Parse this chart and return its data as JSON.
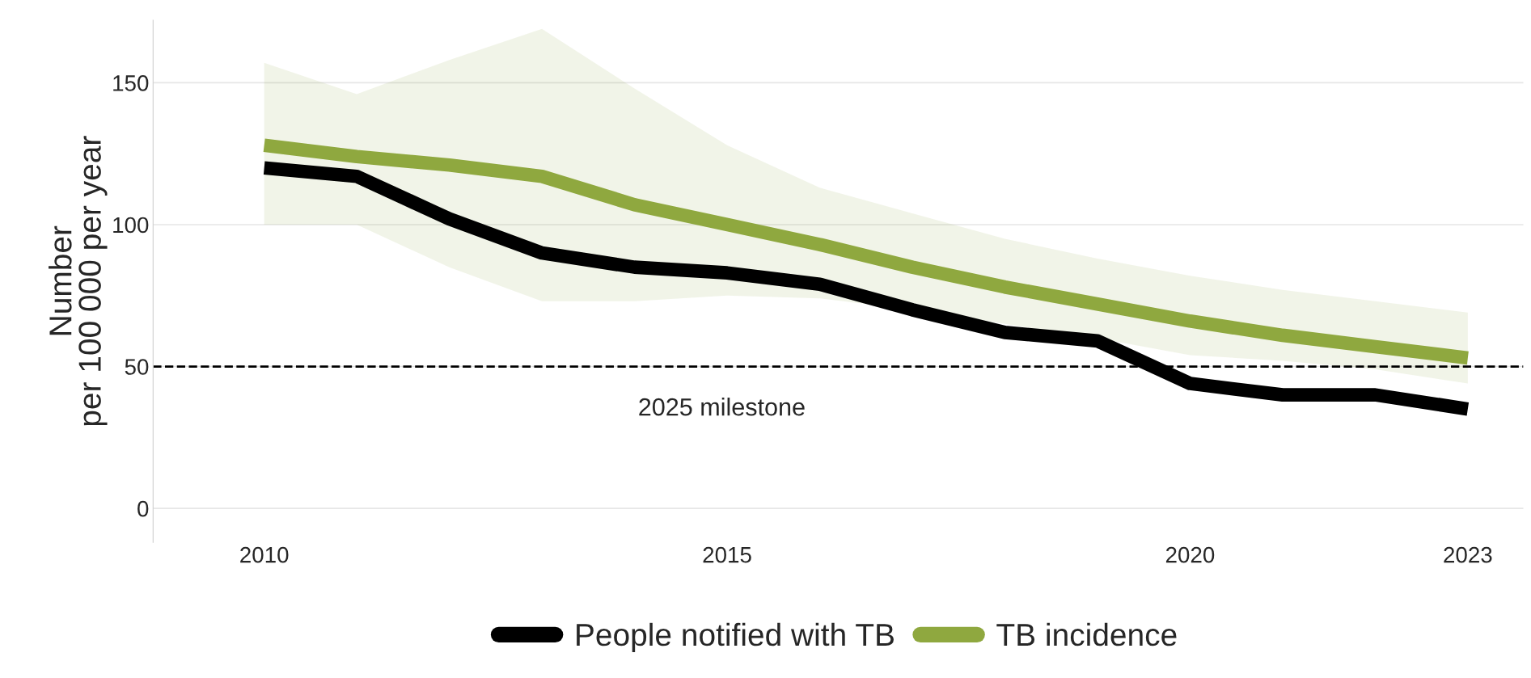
{
  "chart_data": {
    "type": "line",
    "ylabel": "Number\nper 100 000 per year",
    "x": [
      2010,
      2011,
      2012,
      2013,
      2014,
      2015,
      2016,
      2017,
      2018,
      2019,
      2020,
      2021,
      2022,
      2023
    ],
    "series": [
      {
        "name": "People notified with TB",
        "color": "#000000",
        "values": [
          120,
          117,
          102,
          90,
          85,
          83,
          79,
          70,
          62,
          59,
          44,
          40,
          40,
          35
        ]
      },
      {
        "name": "TB incidence",
        "color": "#8fa83f",
        "values": [
          128,
          124,
          121,
          117,
          107,
          100,
          93,
          85,
          78,
          72,
          66,
          61,
          57,
          53
        ],
        "lower": [
          100,
          100,
          85,
          73,
          73,
          75,
          74,
          70,
          65,
          60,
          54,
          52,
          49,
          44
        ],
        "upper": [
          157,
          146,
          158,
          169,
          148,
          128,
          113,
          104,
          95,
          88,
          82,
          77,
          73,
          69
        ]
      }
    ],
    "xlim": [
      2008.8,
      2023.6
    ],
    "ylim": [
      -12,
      172
    ],
    "xticks": [
      2010,
      2015,
      2020,
      2023
    ],
    "yticks": [
      0,
      50,
      100,
      150
    ],
    "ref_lines": [
      {
        "axis": "y",
        "value": 50,
        "line_style": "dashed",
        "color": "#000000",
        "label": "2025 milestone"
      }
    ],
    "grid": "y",
    "legend": "bottom",
    "marker": "none",
    "line_style": "solid"
  }
}
